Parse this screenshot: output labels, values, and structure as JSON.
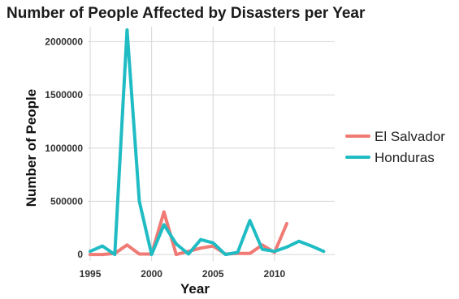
{
  "chart_data": {
    "type": "line",
    "title": "Number of People Affected by Disasters per Year",
    "xlabel": "Year",
    "ylabel": "Number of People",
    "xlim": [
      1994.8,
      2014.9
    ],
    "ylim": [
      -60000,
      2140000
    ],
    "x_ticks": [
      1995,
      2000,
      2005,
      2010
    ],
    "y_ticks": [
      0,
      500000,
      1000000,
      1500000,
      2000000
    ],
    "grid": true,
    "legend_position": "right",
    "series": [
      {
        "name": "El Salvador",
        "color": "#F07A74",
        "points": [
          [
            1995,
            0
          ],
          [
            1996,
            0
          ],
          [
            1997,
            10000
          ],
          [
            1998,
            90000
          ],
          [
            1999,
            5000
          ],
          [
            2000,
            5000
          ],
          [
            2001,
            400000
          ],
          [
            2002,
            0
          ],
          [
            2003,
            30000
          ],
          [
            2004,
            60000
          ],
          [
            2005,
            80000
          ],
          [
            2006,
            5000
          ],
          [
            2007,
            10000
          ],
          [
            2008,
            10000
          ],
          [
            2009,
            90000
          ],
          [
            2010,
            20000
          ],
          [
            2011,
            290000
          ]
        ]
      },
      {
        "name": "Honduras",
        "color": "#20BCC4",
        "points": [
          [
            1995,
            30000
          ],
          [
            1996,
            80000
          ],
          [
            1997,
            0
          ],
          [
            1998,
            2110000
          ],
          [
            1999,
            500000
          ],
          [
            2000,
            0
          ],
          [
            2001,
            280000
          ],
          [
            2002,
            100000
          ],
          [
            2003,
            5000
          ],
          [
            2004,
            140000
          ],
          [
            2005,
            110000
          ],
          [
            2006,
            0
          ],
          [
            2007,
            20000
          ],
          [
            2008,
            320000
          ],
          [
            2009,
            50000
          ],
          [
            2010,
            30000
          ],
          [
            2011,
            70000
          ],
          [
            2012,
            125000
          ],
          [
            2013,
            80000
          ],
          [
            2014,
            30000
          ]
        ]
      }
    ]
  }
}
